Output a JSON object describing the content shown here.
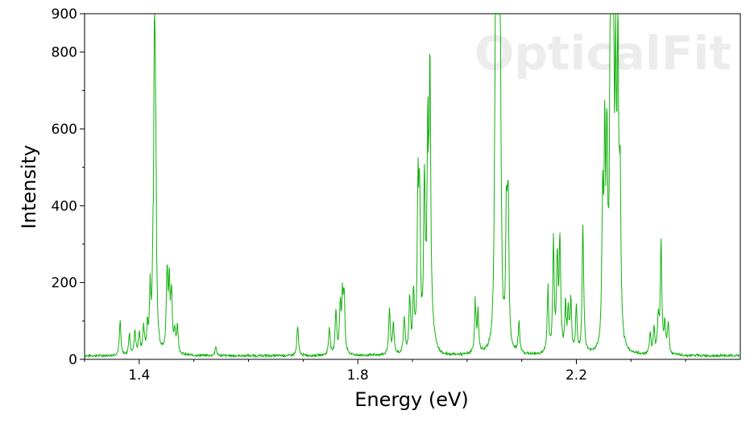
{
  "chart_data": {
    "type": "line",
    "title": "",
    "xlabel": "Energy (eV)",
    "ylabel": "Intensity",
    "xlim": [
      1.3,
      2.5
    ],
    "ylim": [
      0,
      900
    ],
    "x_ticks": [
      1.4,
      1.8,
      2.2
    ],
    "x_tick_labels": [
      "1.4",
      "1.8",
      "2.2"
    ],
    "y_ticks": [
      0,
      200,
      400,
      600,
      800,
      900
    ],
    "y_tick_labels": [
      "0",
      "200",
      "400",
      "600",
      "800",
      "900"
    ],
    "grid": false,
    "legend": "none",
    "watermark": "OpticalFit",
    "series": [
      {
        "color": "#13b10e",
        "peaks": [
          {
            "x": 1.365,
            "y": 85
          },
          {
            "x": 1.382,
            "y": 55
          },
          {
            "x": 1.392,
            "y": 65
          },
          {
            "x": 1.4,
            "y": 55
          },
          {
            "x": 1.408,
            "y": 70
          },
          {
            "x": 1.415,
            "y": 60
          },
          {
            "x": 1.42,
            "y": 150
          },
          {
            "x": 1.425,
            "y": 120
          },
          {
            "x": 1.428,
            "y": 730
          },
          {
            "x": 1.43,
            "y": 430
          },
          {
            "x": 1.451,
            "y": 220
          },
          {
            "x": 1.455,
            "y": 170
          },
          {
            "x": 1.459,
            "y": 150
          },
          {
            "x": 1.465,
            "y": 60
          },
          {
            "x": 1.47,
            "y": 75
          },
          {
            "x": 1.54,
            "y": 25
          },
          {
            "x": 1.69,
            "y": 80
          },
          {
            "x": 1.748,
            "y": 75
          },
          {
            "x": 1.76,
            "y": 120
          },
          {
            "x": 1.768,
            "y": 125
          },
          {
            "x": 1.772,
            "y": 135
          },
          {
            "x": 1.775,
            "y": 145
          },
          {
            "x": 1.858,
            "y": 130
          },
          {
            "x": 1.865,
            "y": 80
          },
          {
            "x": 1.885,
            "y": 100
          },
          {
            "x": 1.895,
            "y": 150
          },
          {
            "x": 1.902,
            "y": 150
          },
          {
            "x": 1.91,
            "y": 390
          },
          {
            "x": 1.913,
            "y": 400
          },
          {
            "x": 1.922,
            "y": 390
          },
          {
            "x": 1.928,
            "y": 490
          },
          {
            "x": 1.932,
            "y": 640
          },
          {
            "x": 2.015,
            "y": 130
          },
          {
            "x": 2.02,
            "y": 100
          },
          {
            "x": 2.052,
            "y": 780
          },
          {
            "x": 2.055,
            "y": 790
          },
          {
            "x": 2.058,
            "y": 890
          },
          {
            "x": 2.06,
            "y": 850
          },
          {
            "x": 2.072,
            "y": 330
          },
          {
            "x": 2.075,
            "y": 385
          },
          {
            "x": 2.095,
            "y": 80
          },
          {
            "x": 2.148,
            "y": 170
          },
          {
            "x": 2.158,
            "y": 280
          },
          {
            "x": 2.165,
            "y": 250
          },
          {
            "x": 2.17,
            "y": 290
          },
          {
            "x": 2.18,
            "y": 120
          },
          {
            "x": 2.185,
            "y": 110
          },
          {
            "x": 2.19,
            "y": 130
          },
          {
            "x": 2.2,
            "y": 120
          },
          {
            "x": 2.212,
            "y": 340
          },
          {
            "x": 2.248,
            "y": 370
          },
          {
            "x": 2.252,
            "y": 500
          },
          {
            "x": 2.256,
            "y": 480
          },
          {
            "x": 2.262,
            "y": 620
          },
          {
            "x": 2.265,
            "y": 775
          },
          {
            "x": 2.268,
            "y": 570
          },
          {
            "x": 2.272,
            "y": 560
          },
          {
            "x": 2.276,
            "y": 730
          },
          {
            "x": 2.28,
            "y": 390
          },
          {
            "x": 2.335,
            "y": 55
          },
          {
            "x": 2.342,
            "y": 70
          },
          {
            "x": 2.35,
            "y": 90
          },
          {
            "x": 2.355,
            "y": 295
          },
          {
            "x": 2.362,
            "y": 80
          },
          {
            "x": 2.368,
            "y": 85
          }
        ],
        "baseline": 6
      }
    ]
  }
}
